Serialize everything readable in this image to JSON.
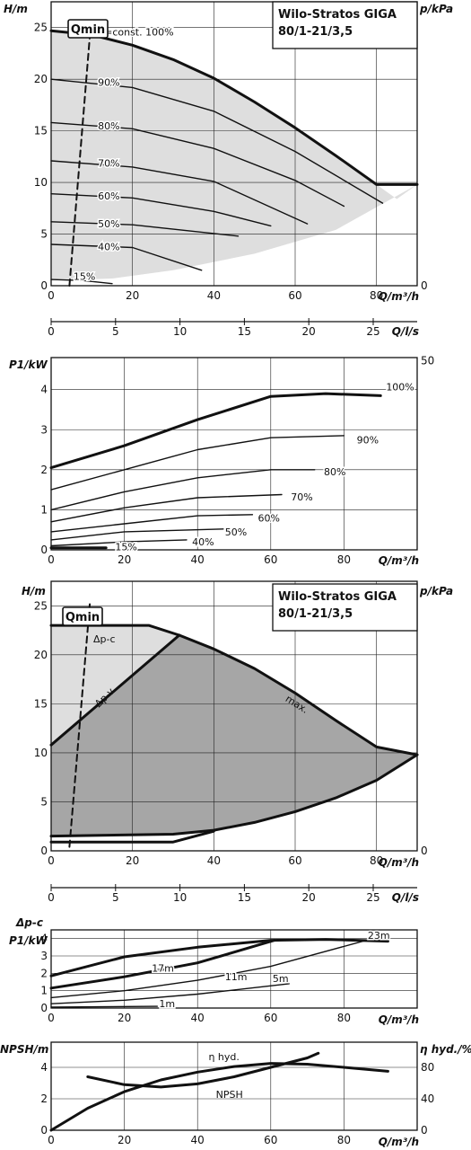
{
  "chart_data": [
    {
      "type": "line",
      "title": "Wilo-Stratos GIGA",
      "subtitle": "80/1-21/3,5",
      "xlabel": "Q/m³/h",
      "ylabel": "H/m",
      "ylabel2": "p/kPa",
      "xlim": [
        0,
        90
      ],
      "ylim": [
        0,
        27.5
      ],
      "y2lim": [
        0,
        275
      ],
      "xticks": [
        0,
        20,
        40,
        60,
        80
      ],
      "yticks": [
        0,
        5,
        10,
        15,
        20,
        25
      ],
      "y2ticks": [
        0,
        50,
        100,
        150,
        200,
        250
      ],
      "grid": true,
      "qmin_label": "Qmin",
      "area_outline": {
        "x": [
          0,
          10,
          20,
          30,
          40,
          50,
          60,
          70,
          80,
          85,
          90,
          70,
          50,
          30,
          15,
          0
        ],
        "y": [
          24.7,
          24.3,
          23.3,
          21.9,
          20.1,
          17.8,
          15.3,
          12.6,
          9.8,
          8.4,
          9.8,
          5.4,
          3.1,
          1.5,
          0.7,
          0.5
        ]
      },
      "qmin_line": {
        "x": [
          4.5,
          9.7
        ],
        "y": [
          0,
          25.1
        ]
      },
      "series": [
        {
          "name": "n=const. 100%",
          "x": [
            0,
            10,
            20,
            30,
            40,
            50,
            60,
            70,
            80,
            90
          ],
          "y": [
            24.7,
            24.3,
            23.3,
            21.9,
            20.1,
            17.8,
            15.3,
            12.6,
            9.8,
            9.8
          ]
        },
        {
          "name": "90%",
          "x": [
            0,
            20,
            40,
            60,
            81.5
          ],
          "y": [
            20,
            19.2,
            16.9,
            13.0,
            8.0
          ]
        },
        {
          "name": "80%",
          "x": [
            0,
            20,
            40,
            60,
            72
          ],
          "y": [
            15.8,
            15.2,
            13.3,
            10.2,
            7.7
          ]
        },
        {
          "name": "70%",
          "x": [
            0,
            20,
            40,
            63
          ],
          "y": [
            12.1,
            11.5,
            10.1,
            6.0
          ]
        },
        {
          "name": "60%",
          "x": [
            0,
            20,
            40,
            54
          ],
          "y": [
            8.9,
            8.5,
            7.2,
            5.8
          ]
        },
        {
          "name": "50%",
          "x": [
            0,
            20,
            46
          ],
          "y": [
            6.2,
            5.9,
            4.8
          ]
        },
        {
          "name": "40%",
          "x": [
            0,
            20,
            37
          ],
          "y": [
            4.0,
            3.7,
            1.5
          ]
        },
        {
          "name": "15%",
          "x": [
            0,
            8,
            15
          ],
          "y": [
            0.6,
            0.5,
            0.2
          ]
        }
      ]
    },
    {
      "type": "axis",
      "xlabel": "Q/l/s",
      "xlim": [
        0,
        25
      ],
      "xticks": [
        0,
        5,
        10,
        15,
        20,
        25
      ]
    },
    {
      "type": "line",
      "xlabel": "Q/m³/h",
      "ylabel": "P1/kW",
      "xlim": [
        0,
        100
      ],
      "ylim": [
        0,
        4.8
      ],
      "xticks": [
        0,
        20,
        40,
        60,
        80
      ],
      "yticks": [
        0,
        1,
        2,
        3,
        4
      ],
      "grid": true,
      "series": [
        {
          "name": "100%",
          "x": [
            0,
            20,
            40,
            60,
            75,
            90
          ],
          "y": [
            2.05,
            2.6,
            3.25,
            3.83,
            3.9,
            3.85
          ]
        },
        {
          "name": "90%",
          "x": [
            0,
            20,
            40,
            60,
            80
          ],
          "y": [
            1.5,
            2.0,
            2.5,
            2.8,
            2.85
          ]
        },
        {
          "name": "80%",
          "x": [
            0,
            20,
            40,
            60,
            72
          ],
          "y": [
            1.0,
            1.45,
            1.8,
            2.0,
            2.0
          ]
        },
        {
          "name": "70%",
          "x": [
            0,
            20,
            40,
            63
          ],
          "y": [
            0.7,
            1.05,
            1.3,
            1.38
          ]
        },
        {
          "name": "60%",
          "x": [
            0,
            20,
            40,
            55
          ],
          "y": [
            0.45,
            0.65,
            0.85,
            0.88
          ]
        },
        {
          "name": "50%",
          "x": [
            0,
            20,
            47
          ],
          "y": [
            0.25,
            0.45,
            0.52
          ]
        },
        {
          "name": "40%",
          "x": [
            0,
            20,
            37
          ],
          "y": [
            0.1,
            0.2,
            0.25
          ]
        },
        {
          "name": "15%",
          "x": [
            0,
            15
          ],
          "y": [
            0.05,
            0.05
          ]
        }
      ]
    },
    {
      "type": "area",
      "title": "Wilo-Stratos GIGA",
      "subtitle": "80/1-21/3,5",
      "xlabel": "Q/m³/h",
      "ylabel": "H/m",
      "ylabel2": "p/kPa",
      "xlim": [
        0,
        90
      ],
      "ylim": [
        0,
        27.5
      ],
      "y2lim": [
        0,
        275
      ],
      "xticks": [
        0,
        20,
        40,
        60,
        80
      ],
      "yticks": [
        0,
        5,
        10,
        15,
        20,
        25
      ],
      "y2ticks": [
        0,
        50,
        100,
        150,
        200,
        250
      ],
      "grid": true,
      "qmin_label": "Qmin",
      "qmin_line": {
        "x": [
          4.5,
          9.5
        ],
        "y": [
          0.4,
          25.2
        ]
      },
      "labels": [
        "Δp-c",
        "Δp-v",
        "max."
      ],
      "light_area": {
        "x": [
          0,
          24,
          31.5,
          0
        ],
        "y": [
          23,
          23,
          22,
          10.8
        ]
      },
      "dark_area": {
        "x": [
          31.5,
          40,
          50,
          60,
          70,
          80,
          90,
          80,
          70,
          60,
          50,
          40,
          30,
          0,
          0
        ],
        "y": [
          22,
          20.6,
          18.6,
          16.1,
          13.3,
          10.6,
          9.8,
          7.2,
          5.4,
          4.0,
          2.9,
          2.1,
          1.7,
          1.5,
          10.8
        ]
      },
      "series": [
        {
          "name": "Δp-c",
          "x": [
            0,
            24,
            31.5
          ],
          "y": [
            23,
            23,
            22
          ]
        },
        {
          "name": "Δp-v",
          "x": [
            0,
            31.5
          ],
          "y": [
            10.8,
            22
          ]
        },
        {
          "name": "max.",
          "x": [
            31.5,
            40,
            50,
            60,
            70,
            80,
            90
          ],
          "y": [
            22,
            20.6,
            18.6,
            16.1,
            13.3,
            10.6,
            9.8
          ]
        },
        {
          "name": "min",
          "x": [
            90,
            80,
            70,
            60,
            50,
            40,
            30,
            0
          ],
          "y": [
            9.8,
            7.2,
            5.4,
            4.0,
            2.9,
            2.1,
            1.7,
            1.5
          ]
        },
        {
          "name": "min-2",
          "x": [
            0,
            30,
            40
          ],
          "y": [
            0.9,
            0.9,
            2.0
          ]
        }
      ]
    },
    {
      "type": "axis",
      "xlabel": "Q/l/s",
      "xlim": [
        0,
        25
      ],
      "xticks": [
        0,
        5,
        10,
        15,
        20,
        25
      ]
    },
    {
      "type": "line",
      "xlabel": "Q/m³/h",
      "ylabel": "P1/kW",
      "ylabel_top": "Δp-c",
      "xlim": [
        0,
        100
      ],
      "ylim": [
        0,
        4.5
      ],
      "xticks": [
        0,
        20,
        40,
        60,
        80
      ],
      "yticks": [
        0,
        1,
        2,
        3,
        4
      ],
      "grid": true,
      "series": [
        {
          "name": "23m",
          "x": [
            0,
            20,
            40,
            60,
            75,
            92
          ],
          "y": [
            1.85,
            2.95,
            3.5,
            3.9,
            3.95,
            3.85
          ]
        },
        {
          "name": "17m",
          "x": [
            0,
            20,
            40,
            61
          ],
          "y": [
            1.15,
            1.8,
            2.6,
            3.9
          ]
        },
        {
          "name": "11m",
          "x": [
            0,
            20,
            40,
            60,
            87
          ],
          "y": [
            0.6,
            1.0,
            1.6,
            2.4,
            3.95
          ]
        },
        {
          "name": "5m",
          "x": [
            0,
            20,
            40,
            65
          ],
          "y": [
            0.25,
            0.45,
            0.8,
            1.4
          ]
        },
        {
          "name": "1m",
          "x": [
            0,
            29
          ],
          "y": [
            0.05,
            0.1
          ]
        }
      ]
    },
    {
      "type": "line",
      "xlabel": "Q/m³/h",
      "ylabel": "NPSH/m",
      "ylabel2": "η hyd./%",
      "xlim": [
        0,
        100
      ],
      "ylim": [
        0,
        5.6
      ],
      "y2lim": [
        0,
        112
      ],
      "xticks": [
        0,
        20,
        40,
        60,
        80
      ],
      "yticks": [
        0,
        2,
        4
      ],
      "y2ticks": [
        0,
        40,
        80
      ],
      "grid": true,
      "series": [
        {
          "name": "η hyd.",
          "axis": "right",
          "x": [
            0,
            10,
            20,
            30,
            40,
            50,
            60,
            70,
            80,
            92
          ],
          "y": [
            0,
            28,
            49,
            64,
            74,
            81,
            85,
            84,
            80,
            75
          ]
        },
        {
          "name": "NPSH",
          "axis": "left",
          "x": [
            10,
            20,
            30,
            40,
            50,
            60,
            70,
            73
          ],
          "y": [
            3.4,
            2.9,
            2.75,
            2.95,
            3.4,
            4.0,
            4.6,
            4.9
          ]
        }
      ]
    }
  ]
}
